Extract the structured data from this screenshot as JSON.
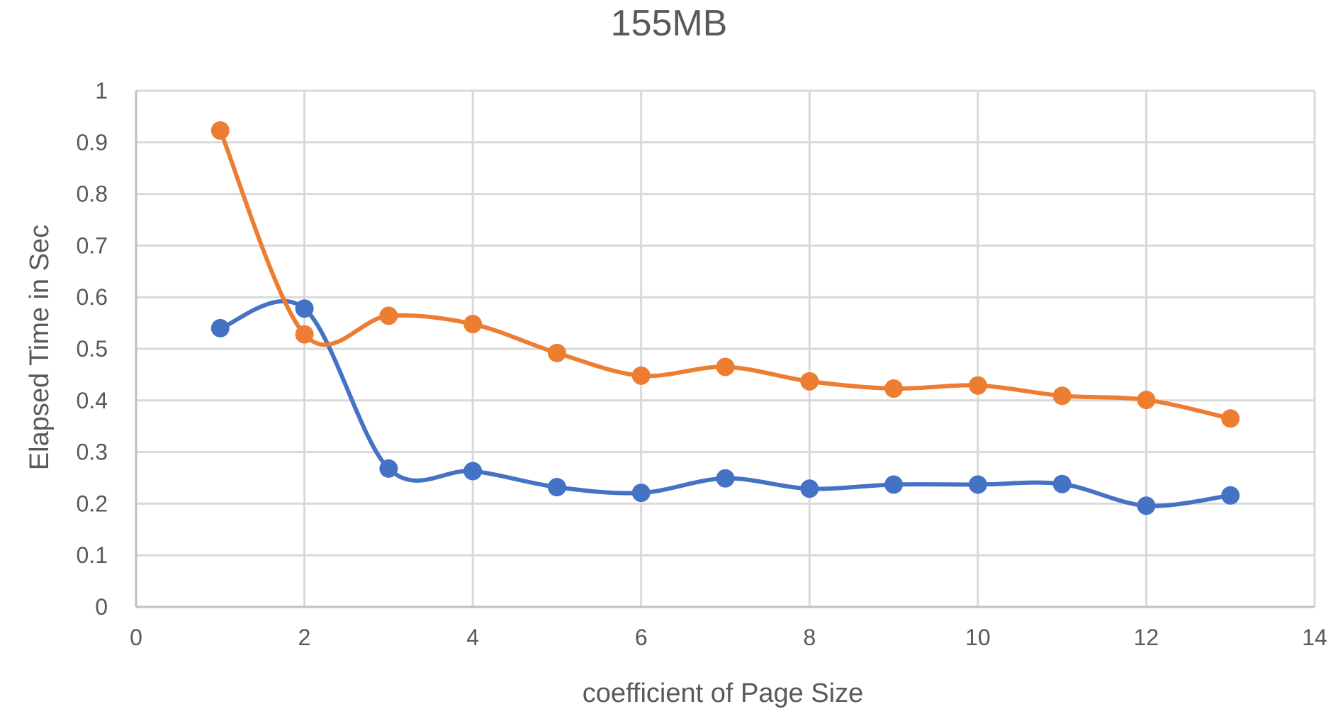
{
  "chart_data": {
    "type": "line",
    "title": "155MB",
    "xlabel": "coefficient of Page Size",
    "ylabel": "Elapsed Time in Sec",
    "xlim": [
      0,
      14
    ],
    "ylim": [
      0,
      1
    ],
    "x_ticks": [
      "0",
      "2",
      "4",
      "6",
      "8",
      "10",
      "12",
      "14"
    ],
    "y_ticks": [
      "0",
      "0.1",
      "0.2",
      "0.3",
      "0.4",
      "0.5",
      "0.6",
      "0.7",
      "0.8",
      "0.9",
      "1"
    ],
    "grid": true,
    "legend": "none",
    "smooth": true,
    "x": [
      1,
      2,
      3,
      4,
      5,
      6,
      7,
      8,
      9,
      10,
      11,
      12,
      13
    ],
    "series": [
      {
        "color": "#4472c4",
        "values": [
          0.54,
          0.578,
          0.268,
          0.263,
          0.232,
          0.221,
          0.249,
          0.229,
          0.237,
          0.237,
          0.238,
          0.196,
          0.216
        ]
      },
      {
        "color": "#ed7d31",
        "values": [
          0.923,
          0.528,
          0.564,
          0.548,
          0.492,
          0.448,
          0.465,
          0.437,
          0.423,
          0.429,
          0.409,
          0.401,
          0.365
        ]
      }
    ]
  }
}
